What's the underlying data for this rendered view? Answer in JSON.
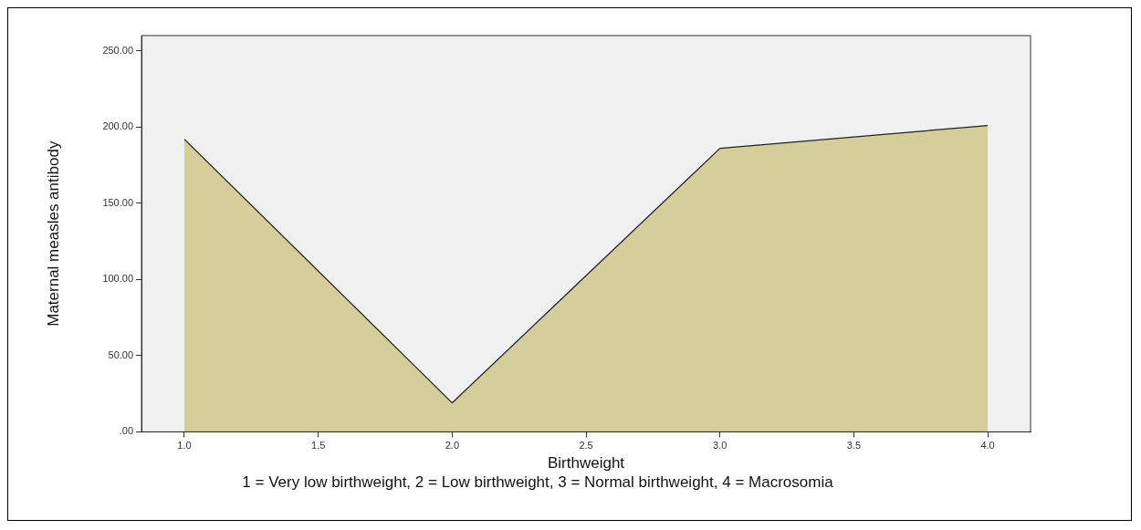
{
  "chart_data": {
    "type": "area",
    "xlabel": "Birthweight",
    "ylabel": "Maternal measles antibody",
    "annotations": [
      "1 = Very low birthweight, 2 = Low birthweight, 3 = Normal birthweight, 4 = Macrosomia"
    ],
    "x": [
      1,
      2,
      3,
      4
    ],
    "series": [
      {
        "color": "#d4cf98",
        "values": [
          192,
          19,
          186,
          201
        ]
      }
    ],
    "xlim": [
      0.84,
      4.16
    ],
    "xticks": [
      {
        "value": 1,
        "label": "1.0"
      },
      {
        "value": 1.5,
        "label": "1.5"
      },
      {
        "value": 2,
        "label": "2.0"
      },
      {
        "value": 2.5,
        "label": "2.5"
      },
      {
        "value": 3,
        "label": "3.0"
      },
      {
        "value": 3.5,
        "label": "3.5"
      },
      {
        "value": 4,
        "label": "4.0"
      }
    ],
    "ylim": [
      0,
      260
    ],
    "yticks": [
      {
        "value": 0,
        "label": ".00"
      },
      {
        "value": 50,
        "label": "50.00"
      },
      {
        "value": 100,
        "label": "100.00"
      },
      {
        "value": 150,
        "label": "150.00"
      },
      {
        "value": 200,
        "label": "200.00"
      },
      {
        "value": 250,
        "label": "250.00"
      }
    ],
    "grid": false,
    "legend": false,
    "marker": "none"
  }
}
